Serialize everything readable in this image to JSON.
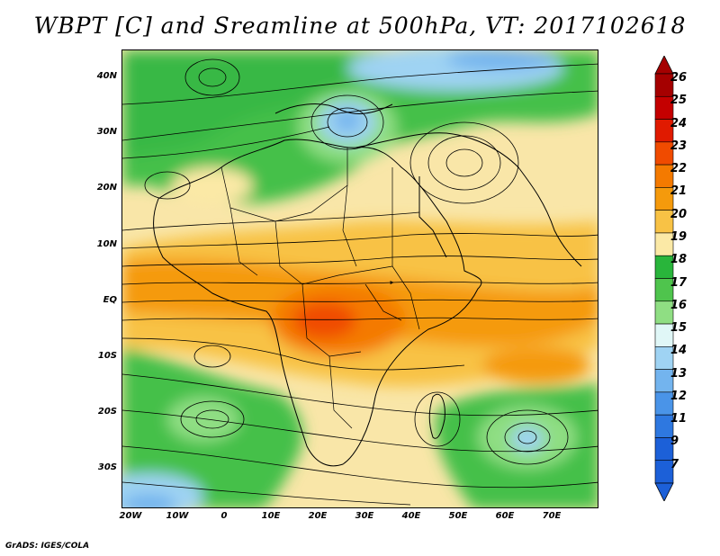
{
  "title": "WBPT [C] and Sreamline at 500hPa, VT: 2017102618",
  "credit": "GrADS: IGES/COLA",
  "map": {
    "lat_labels": [
      "40N",
      "30N",
      "20N",
      "10N",
      "EQ",
      "10S",
      "20S",
      "30S"
    ],
    "lon_labels": [
      "20W",
      "10W",
      "0",
      "10E",
      "20E",
      "30E",
      "40E",
      "50E",
      "60E",
      "70E"
    ],
    "lat_range": [
      -37,
      45
    ],
    "lon_range": [
      -22,
      80
    ]
  },
  "colorbar": {
    "levels": [
      "26",
      "25",
      "24",
      "23",
      "22",
      "21",
      "20",
      "19",
      "18",
      "17",
      "16",
      "15",
      "14",
      "13",
      "12",
      "11",
      "9",
      "7"
    ],
    "colors": [
      "#a50000",
      "#c40000",
      "#e01a00",
      "#f04b00",
      "#f47a00",
      "#f59a0c",
      "#f8c245",
      "#fbe9a6",
      "#29b53b",
      "#4fc44d",
      "#8fde83",
      "#e0f7f7",
      "#9fd3f3",
      "#73b4ee",
      "#4a94e8",
      "#2e78e0",
      "#1c60d8",
      "#1c60d8"
    ]
  }
}
